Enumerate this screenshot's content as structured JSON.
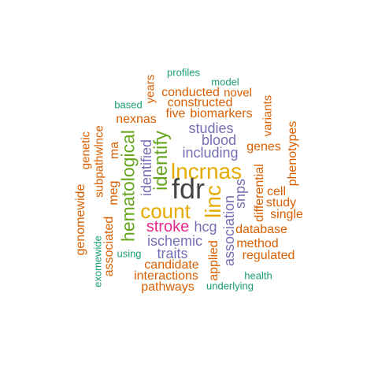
{
  "words": {
    "fdr": "fdr",
    "lncrnas": "lncrnas",
    "linc": "linc",
    "count": "count",
    "hematological": "hematological",
    "identify": "identify",
    "stroke": "stroke",
    "blood": "blood",
    "including": "including",
    "studies": "studies",
    "ischemic": "ischemic",
    "traits": "traits",
    "snps": "snps",
    "association": "association",
    "hcg": "hcg",
    "identified": "identified",
    "meg": "meg",
    "profiles": "profiles",
    "model": "model",
    "years": "years",
    "conducted": "conducted",
    "novel": "novel",
    "based": "based",
    "constructed": "constructed",
    "variants": "variants",
    "five": "five",
    "biomarkers": "biomarkers",
    "nexnas": "nexnas",
    "subpathwlnce": "subpathwlnce",
    "genetic": "genetic",
    "ma": "ma",
    "genes": "genes",
    "phenotypes": "phenotypes",
    "differential": "differential",
    "cell": "cell",
    "study": "study",
    "single": "single",
    "database": "database",
    "method": "method",
    "regulated": "regulated",
    "genomewide": "genomewide",
    "exomewide": "exomewide",
    "associated": "associated",
    "using": "using",
    "candidate": "candidate",
    "applied": "applied",
    "interactions": "interactions",
    "pathways": "pathways",
    "health": "health",
    "underlying": "underlying"
  }
}
